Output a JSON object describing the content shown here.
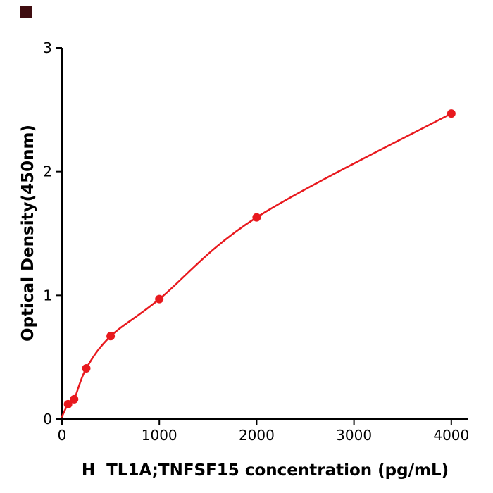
{
  "decor": {
    "corner_square_color": "#3f0d10"
  },
  "chart_data": {
    "type": "scatter",
    "series": [
      {
        "name": "standard-curve-points",
        "x": [
          62.5,
          125,
          250,
          500,
          1000,
          2000,
          4000
        ],
        "y": [
          0.12,
          0.16,
          0.41,
          0.67,
          0.97,
          1.63,
          2.47
        ]
      }
    ],
    "fit_curve_origin": {
      "x": 0,
      "y": 0.02
    },
    "title": "",
    "xlabel": "H  TL1A;TNFSF15 concentration (pg/mL)",
    "ylabel": "Optical Density(450nm)",
    "xlim": [
      0,
      4175
    ],
    "ylim": [
      0,
      3
    ],
    "xticks": [
      0,
      1000,
      2000,
      3000,
      4000
    ],
    "yticks": [
      0,
      1,
      2,
      3
    ],
    "grid": false,
    "legend": "none",
    "point_color": "#e8191e",
    "line_color": "#e8191e",
    "axis_color": "#000000"
  }
}
